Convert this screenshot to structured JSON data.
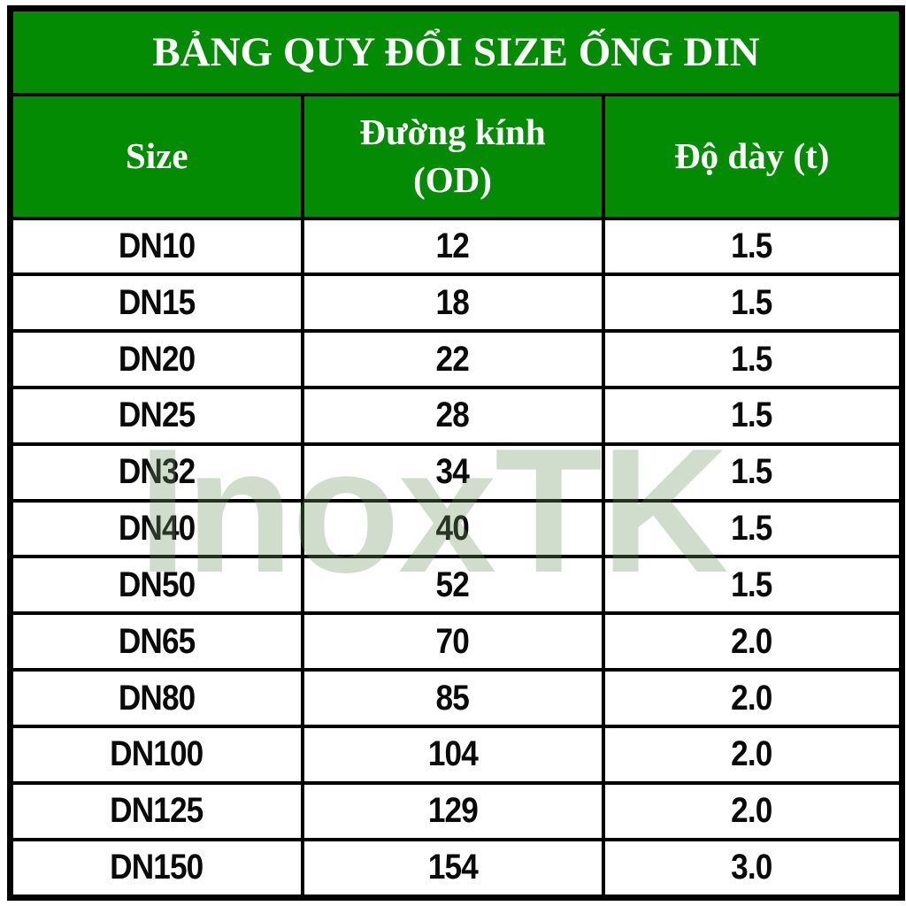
{
  "title": "BẢNG QUY ĐỔI SIZE ỐNG DIN",
  "watermark": {
    "text": "InoxTK"
  },
  "colors": {
    "header_bg": "#038c03",
    "header_text": "#ffffff",
    "body_text": "#0a0a0a",
    "border": "#000000",
    "watermark": "rgba(110,150,100,0.32)"
  },
  "table": {
    "columns": [
      {
        "id": "size",
        "lines": [
          "Size"
        ]
      },
      {
        "id": "od",
        "lines": [
          "Đường kính",
          "(OD)"
        ]
      },
      {
        "id": "t",
        "lines": [
          "Độ dày (t)"
        ]
      }
    ],
    "rows": [
      {
        "size": "DN10",
        "od": "12",
        "t": "1.5"
      },
      {
        "size": "DN15",
        "od": "18",
        "t": "1.5"
      },
      {
        "size": "DN20",
        "od": "22",
        "t": "1.5"
      },
      {
        "size": "DN25",
        "od": "28",
        "t": "1.5"
      },
      {
        "size": "DN32",
        "od": "34",
        "t": "1.5"
      },
      {
        "size": "DN40",
        "od": "40",
        "t": "1.5"
      },
      {
        "size": "DN50",
        "od": "52",
        "t": "1.5"
      },
      {
        "size": "DN65",
        "od": "70",
        "t": "2.0"
      },
      {
        "size": "DN80",
        "od": "85",
        "t": "2.0"
      },
      {
        "size": "DN100",
        "od": "104",
        "t": "2.0"
      },
      {
        "size": "DN125",
        "od": "129",
        "t": "2.0"
      },
      {
        "size": "DN150",
        "od": "154",
        "t": "3.0"
      }
    ]
  }
}
